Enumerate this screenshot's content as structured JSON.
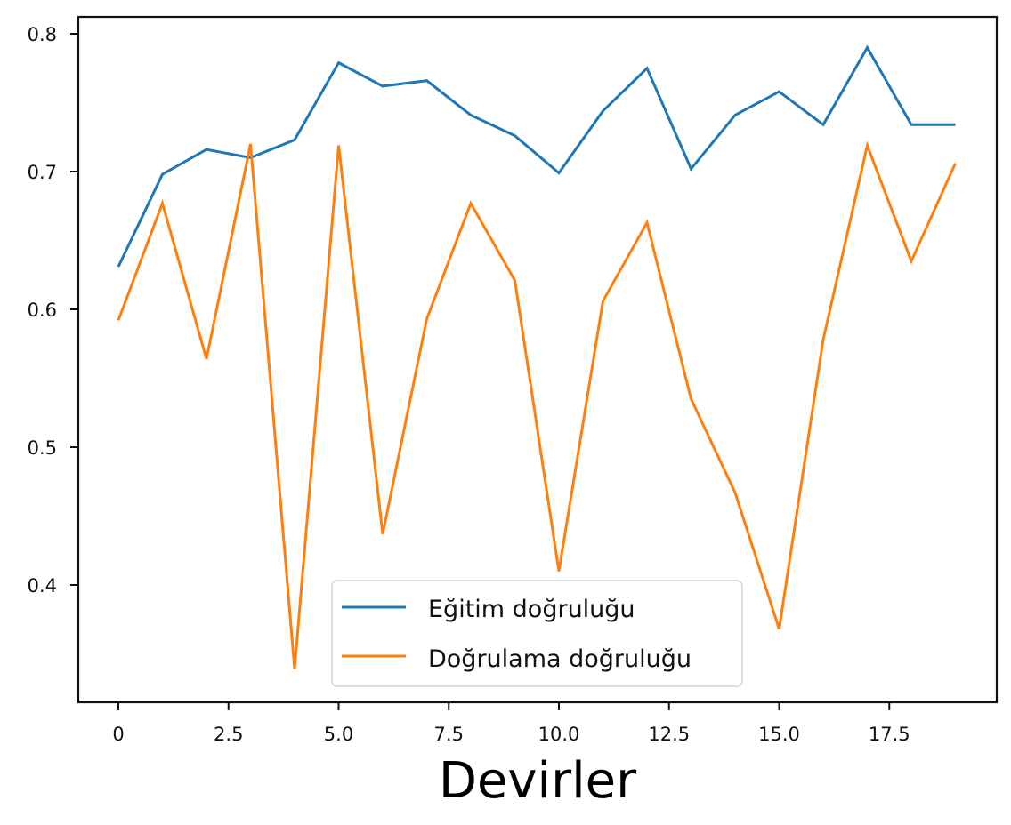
{
  "chart_data": {
    "type": "line",
    "title": "",
    "xlabel": "Devirler",
    "ylabel": "",
    "x": [
      0,
      1,
      2,
      3,
      4,
      5,
      6,
      7,
      8,
      9,
      10,
      11,
      12,
      13,
      14,
      15,
      16,
      17,
      18,
      19
    ],
    "series": [
      {
        "name": "Eğitim doğruluğu",
        "color": "#1f77b4",
        "values": [
          0.631,
          0.698,
          0.716,
          0.71,
          0.723,
          0.779,
          0.762,
          0.766,
          0.741,
          0.726,
          0.699,
          0.744,
          0.775,
          0.702,
          0.741,
          0.758,
          0.734,
          0.79,
          0.734,
          0.734
        ]
      },
      {
        "name": "Doğrulama doğruluğu",
        "color": "#ff7f0e",
        "values": [
          0.592,
          0.677,
          0.564,
          0.72,
          0.339,
          0.719,
          0.437,
          0.593,
          0.677,
          0.621,
          0.41,
          0.606,
          0.663,
          0.535,
          0.467,
          0.368,
          0.578,
          0.719,
          0.635,
          0.706
        ]
      }
    ],
    "xticks": [
      0,
      2.5,
      5.0,
      7.5,
      10.0,
      12.5,
      15.0,
      17.5
    ],
    "xtick_labels": [
      "0",
      "2.5",
      "5.0",
      "7.5",
      "10.0",
      "12.5",
      "15.0",
      "17.5"
    ],
    "yticks": [
      0.4,
      0.5,
      0.6,
      0.7,
      0.8
    ],
    "ytick_labels": [
      "0.4",
      "0.5",
      "0.6",
      "0.7",
      "0.8"
    ],
    "xlim": [
      -0.9,
      19.9
    ],
    "ylim": [
      0.32,
      0.812
    ],
    "grid": false,
    "legend_position": "lower center"
  }
}
